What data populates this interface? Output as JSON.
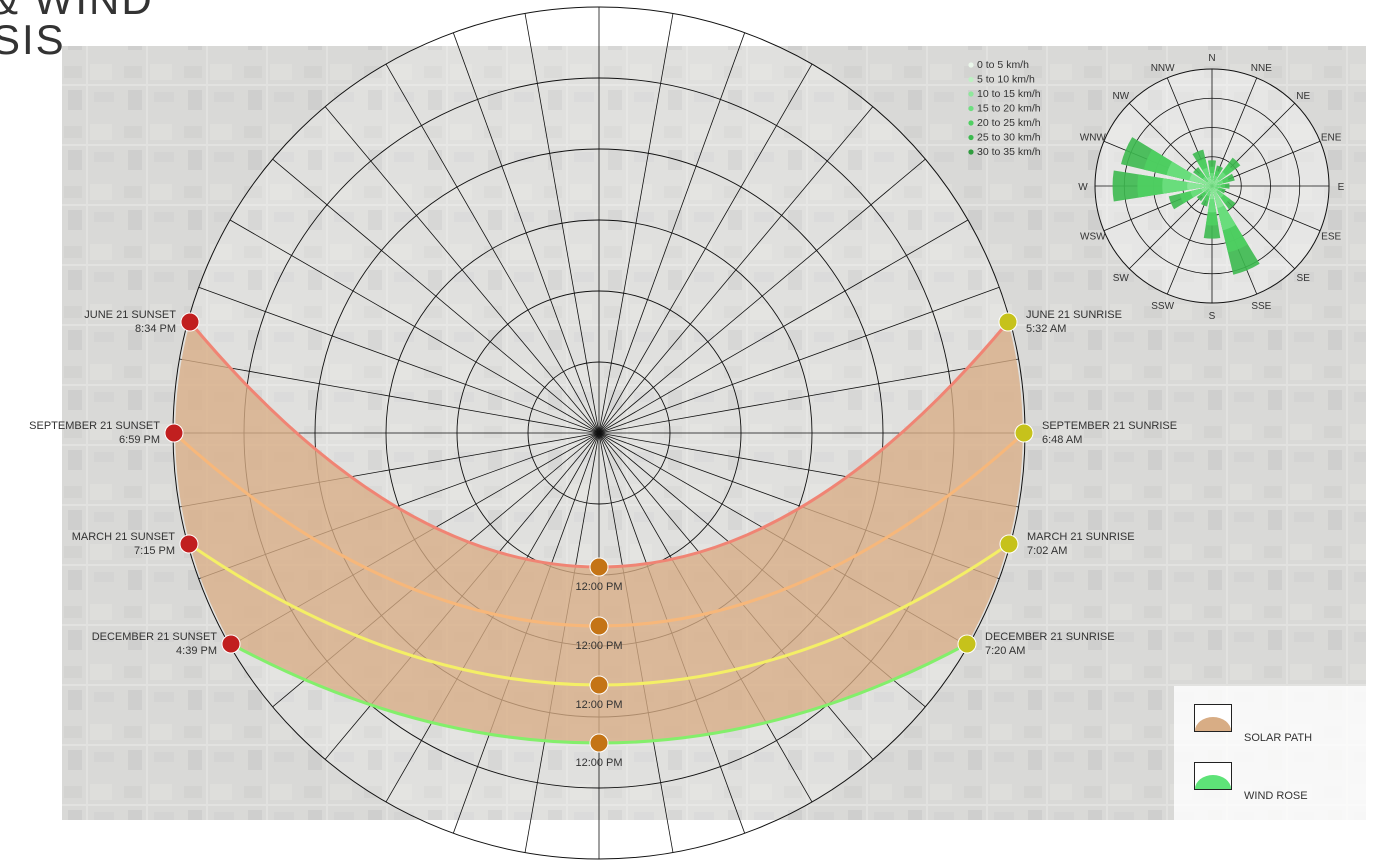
{
  "title": {
    "line1": "& WIND",
    "line2": "SIS"
  },
  "colors": {
    "solar_fill": "#d8ad85",
    "june": "#f08474",
    "september": "#f7b77a",
    "march": "#f4ef66",
    "december": "#83ef6b",
    "sunset_dot": "#c11f1f",
    "sunrise_dot": "#c6c21b",
    "noon_dot": "#c47416",
    "wind": "#5ee378"
  },
  "sun_paths": [
    {
      "id": "june",
      "sunset_label": "JUNE 21 SUNSET",
      "sunset_time": "8:34 PM",
      "sunrise_label": "JUNE 21 SUNRISE",
      "sunrise_time": "5:32 AM",
      "noon_label": "12:00 PM"
    },
    {
      "id": "september",
      "sunset_label": "SEPTEMBER 21 SUNSET",
      "sunset_time": "6:59 PM",
      "sunrise_label": "SEPTEMBER 21 SUNRISE",
      "sunrise_time": "6:48 AM",
      "noon_label": "12:00 PM"
    },
    {
      "id": "march",
      "sunset_label": "MARCH 21 SUNSET",
      "sunset_time": "7:15 PM",
      "sunrise_label": "MARCH 21 SUNRISE",
      "sunrise_time": "7:02 AM",
      "noon_label": "12:00 PM"
    },
    {
      "id": "december",
      "sunset_label": "DECEMBER 21 SUNSET",
      "sunset_time": "4:39 PM",
      "sunrise_label": "DECEMBER 21 SUNRISE",
      "sunrise_time": "7:20 AM",
      "noon_label": "12:00 PM"
    }
  ],
  "wind_rose": {
    "directions": [
      "N",
      "NNE",
      "NE",
      "ENE",
      "E",
      "ESE",
      "SE",
      "SSE",
      "S",
      "SSW",
      "SW",
      "WSW",
      "W",
      "WNW",
      "NW",
      "NNW"
    ],
    "speed_legend": [
      "0 to 5 km/h",
      "5 to 10 km/h",
      "10 to 15 km/h",
      "15 to 20 km/h",
      "20 to 25 km/h",
      "25 to 30 km/h",
      "30 to 35 km/h"
    ],
    "speed_colors": [
      "#eaf7ea",
      "#bdf0c2",
      "#8ee79b",
      "#6ddf80",
      "#4fcf62",
      "#3cb94f",
      "#2e9c3d"
    ]
  },
  "legend": {
    "solar_path": "SOLAR PATH",
    "wind_rose": "WIND ROSE"
  }
}
